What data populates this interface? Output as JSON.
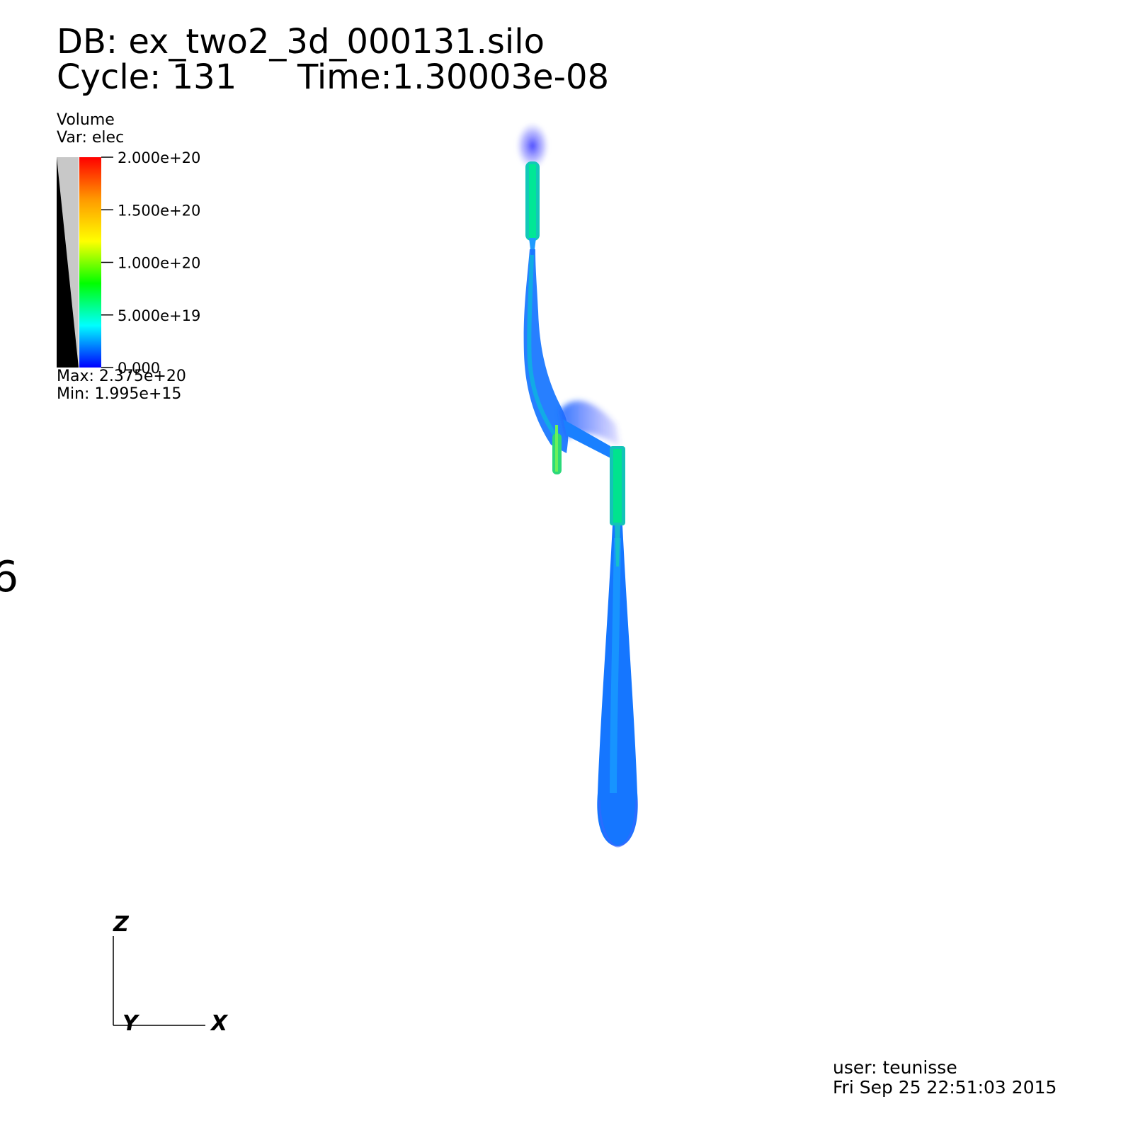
{
  "header": {
    "db_label": "DB: ex_two2_3d_000131.silo",
    "cycle_label": "Cycle: 131",
    "time_label": "Time:1.30003e-08"
  },
  "legend": {
    "plot_type": "Volume",
    "var_label": "Var: elec",
    "ticks": [
      "2.000e+20",
      "1.500e+20",
      "1.000e+20",
      "5.000e+19",
      "0.000"
    ],
    "max_label": "Max:  2.375e+20",
    "min_label": "Min:  1.995e+15",
    "gradient_colors": [
      "#ff0000",
      "#ff9900",
      "#ffff00",
      "#00ff00",
      "#00ffff",
      "#0000ff"
    ]
  },
  "triad": {
    "z": "Z",
    "y": "Y",
    "x": "X"
  },
  "footer": {
    "user_label": "user: teunisse",
    "date_label": "Fri Sep 25 22:51:03 2015"
  },
  "colors": {
    "stream": "#1a7fff",
    "stream_core": "#00e896",
    "halo": "#3a3aff"
  }
}
